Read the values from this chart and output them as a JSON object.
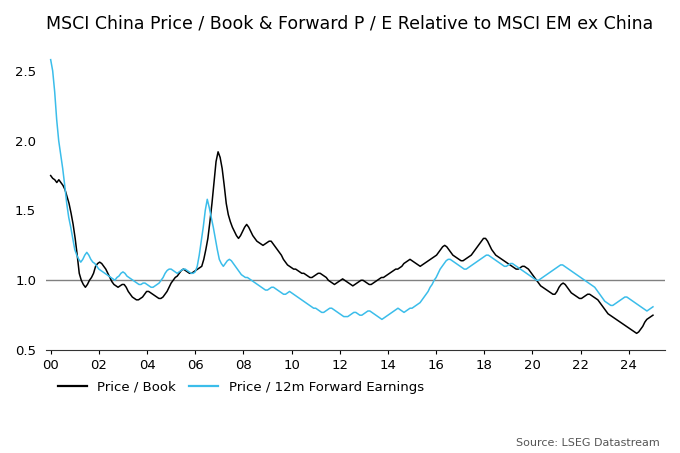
{
  "title": "MSCI China Price / Book & Forward P / E Relative to MSCI EM ex China",
  "source": "Source: LSEG Datastream",
  "ylim": [
    0.5,
    2.7
  ],
  "yticks": [
    0.5,
    1.0,
    1.5,
    2.0,
    2.5
  ],
  "xticks": [
    0,
    2,
    4,
    6,
    8,
    10,
    12,
    14,
    16,
    18,
    20,
    22,
    24
  ],
  "xticklabels": [
    "00",
    "02",
    "04",
    "06",
    "08",
    "10",
    "12",
    "14",
    "16",
    "18",
    "20",
    "22",
    "24"
  ],
  "xlim": [
    -0.2,
    25.5
  ],
  "hline_y": 1.0,
  "hline_color": "#808080",
  "legend_labels": [
    "Price / Book",
    "Price / 12m Forward Earnings"
  ],
  "pb_color": "#000000",
  "pe_color": "#3bbdea",
  "pb_linewidth": 1.1,
  "pe_linewidth": 1.1,
  "title_fontsize": 12.5,
  "tick_fontsize": 9.5,
  "legend_fontsize": 9.5,
  "source_fontsize": 8,
  "background_color": "#ffffff",
  "pb_y": [
    1.75,
    1.73,
    1.72,
    1.7,
    1.72,
    1.7,
    1.68,
    1.65,
    1.6,
    1.55,
    1.48,
    1.4,
    1.3,
    1.18,
    1.05,
    1.0,
    0.97,
    0.95,
    0.97,
    1.0,
    1.02,
    1.05,
    1.1,
    1.12,
    1.13,
    1.12,
    1.1,
    1.08,
    1.05,
    1.02,
    0.99,
    0.97,
    0.96,
    0.95,
    0.96,
    0.97,
    0.97,
    0.95,
    0.92,
    0.9,
    0.88,
    0.87,
    0.86,
    0.86,
    0.87,
    0.88,
    0.9,
    0.92,
    0.92,
    0.91,
    0.9,
    0.89,
    0.88,
    0.87,
    0.87,
    0.88,
    0.9,
    0.92,
    0.95,
    0.98,
    1.0,
    1.02,
    1.03,
    1.05,
    1.07,
    1.08,
    1.07,
    1.06,
    1.05,
    1.05,
    1.06,
    1.07,
    1.08,
    1.09,
    1.1,
    1.15,
    1.22,
    1.3,
    1.42,
    1.55,
    1.7,
    1.85,
    1.92,
    1.88,
    1.8,
    1.68,
    1.55,
    1.47,
    1.42,
    1.38,
    1.35,
    1.32,
    1.3,
    1.32,
    1.35,
    1.38,
    1.4,
    1.38,
    1.35,
    1.32,
    1.3,
    1.28,
    1.27,
    1.26,
    1.25,
    1.26,
    1.27,
    1.28,
    1.28,
    1.26,
    1.24,
    1.22,
    1.2,
    1.18,
    1.15,
    1.13,
    1.11,
    1.1,
    1.09,
    1.08,
    1.08,
    1.07,
    1.06,
    1.05,
    1.05,
    1.04,
    1.03,
    1.02,
    1.02,
    1.03,
    1.04,
    1.05,
    1.05,
    1.04,
    1.03,
    1.02,
    1.0,
    0.99,
    0.98,
    0.97,
    0.98,
    0.99,
    1.0,
    1.01,
    1.0,
    0.99,
    0.98,
    0.97,
    0.96,
    0.97,
    0.98,
    0.99,
    1.0,
    1.0,
    0.99,
    0.98,
    0.97,
    0.97,
    0.98,
    0.99,
    1.0,
    1.01,
    1.02,
    1.02,
    1.03,
    1.04,
    1.05,
    1.06,
    1.07,
    1.08,
    1.08,
    1.09,
    1.1,
    1.12,
    1.13,
    1.14,
    1.15,
    1.14,
    1.13,
    1.12,
    1.11,
    1.1,
    1.11,
    1.12,
    1.13,
    1.14,
    1.15,
    1.16,
    1.17,
    1.18,
    1.2,
    1.22,
    1.24,
    1.25,
    1.24,
    1.22,
    1.2,
    1.18,
    1.17,
    1.16,
    1.15,
    1.14,
    1.14,
    1.15,
    1.16,
    1.17,
    1.18,
    1.2,
    1.22,
    1.24,
    1.26,
    1.28,
    1.3,
    1.3,
    1.28,
    1.25,
    1.22,
    1.2,
    1.18,
    1.17,
    1.16,
    1.15,
    1.14,
    1.13,
    1.12,
    1.11,
    1.1,
    1.09,
    1.08,
    1.08,
    1.09,
    1.1,
    1.1,
    1.09,
    1.08,
    1.06,
    1.04,
    1.02,
    1.0,
    0.98,
    0.96,
    0.95,
    0.94,
    0.93,
    0.92,
    0.91,
    0.9,
    0.9,
    0.92,
    0.95,
    0.97,
    0.98,
    0.97,
    0.95,
    0.93,
    0.91,
    0.9,
    0.89,
    0.88,
    0.87,
    0.87,
    0.88,
    0.89,
    0.9,
    0.9,
    0.89,
    0.88,
    0.87,
    0.86,
    0.84,
    0.82,
    0.8,
    0.78,
    0.76,
    0.75,
    0.74,
    0.73,
    0.72,
    0.71,
    0.7,
    0.69,
    0.68,
    0.67,
    0.66,
    0.65,
    0.64,
    0.63,
    0.62,
    0.63,
    0.65,
    0.67,
    0.7,
    0.72,
    0.73,
    0.74,
    0.75
  ],
  "pe_y": [
    2.58,
    2.5,
    2.35,
    2.15,
    2.0,
    1.9,
    1.8,
    1.68,
    1.55,
    1.45,
    1.38,
    1.3,
    1.22,
    1.18,
    1.15,
    1.13,
    1.15,
    1.18,
    1.2,
    1.18,
    1.15,
    1.13,
    1.12,
    1.1,
    1.08,
    1.07,
    1.06,
    1.05,
    1.04,
    1.03,
    1.02,
    1.01,
    1.0,
    1.02,
    1.03,
    1.05,
    1.06,
    1.05,
    1.03,
    1.02,
    1.01,
    1.0,
    0.99,
    0.98,
    0.97,
    0.97,
    0.98,
    0.98,
    0.97,
    0.96,
    0.95,
    0.95,
    0.96,
    0.97,
    0.98,
    1.0,
    1.02,
    1.05,
    1.07,
    1.08,
    1.08,
    1.07,
    1.06,
    1.05,
    1.06,
    1.07,
    1.08,
    1.08,
    1.07,
    1.06,
    1.05,
    1.05,
    1.06,
    1.1,
    1.18,
    1.28,
    1.38,
    1.5,
    1.58,
    1.52,
    1.45,
    1.38,
    1.3,
    1.22,
    1.15,
    1.12,
    1.1,
    1.12,
    1.14,
    1.15,
    1.14,
    1.12,
    1.1,
    1.08,
    1.06,
    1.04,
    1.03,
    1.02,
    1.02,
    1.01,
    1.0,
    0.99,
    0.98,
    0.97,
    0.96,
    0.95,
    0.94,
    0.93,
    0.93,
    0.94,
    0.95,
    0.95,
    0.94,
    0.93,
    0.92,
    0.91,
    0.9,
    0.9,
    0.91,
    0.92,
    0.91,
    0.9,
    0.89,
    0.88,
    0.87,
    0.86,
    0.85,
    0.84,
    0.83,
    0.82,
    0.81,
    0.8,
    0.8,
    0.79,
    0.78,
    0.77,
    0.77,
    0.78,
    0.79,
    0.8,
    0.8,
    0.79,
    0.78,
    0.77,
    0.76,
    0.75,
    0.74,
    0.74,
    0.74,
    0.75,
    0.76,
    0.77,
    0.77,
    0.76,
    0.75,
    0.75,
    0.76,
    0.77,
    0.78,
    0.78,
    0.77,
    0.76,
    0.75,
    0.74,
    0.73,
    0.72,
    0.73,
    0.74,
    0.75,
    0.76,
    0.77,
    0.78,
    0.79,
    0.8,
    0.79,
    0.78,
    0.77,
    0.78,
    0.79,
    0.8,
    0.8,
    0.81,
    0.82,
    0.83,
    0.84,
    0.86,
    0.88,
    0.9,
    0.92,
    0.95,
    0.97,
    1.0,
    1.02,
    1.05,
    1.08,
    1.1,
    1.12,
    1.14,
    1.15,
    1.15,
    1.14,
    1.13,
    1.12,
    1.11,
    1.1,
    1.09,
    1.08,
    1.08,
    1.09,
    1.1,
    1.11,
    1.12,
    1.13,
    1.14,
    1.15,
    1.16,
    1.17,
    1.18,
    1.18,
    1.17,
    1.16,
    1.15,
    1.14,
    1.13,
    1.12,
    1.11,
    1.1,
    1.1,
    1.11,
    1.12,
    1.12,
    1.11,
    1.1,
    1.09,
    1.08,
    1.07,
    1.06,
    1.05,
    1.04,
    1.03,
    1.02,
    1.01,
    1.0,
    1.0,
    1.01,
    1.02,
    1.03,
    1.04,
    1.05,
    1.06,
    1.07,
    1.08,
    1.09,
    1.1,
    1.11,
    1.11,
    1.1,
    1.09,
    1.08,
    1.07,
    1.06,
    1.05,
    1.04,
    1.03,
    1.02,
    1.01,
    1.0,
    0.99,
    0.98,
    0.97,
    0.96,
    0.95,
    0.93,
    0.91,
    0.89,
    0.87,
    0.85,
    0.84,
    0.83,
    0.82,
    0.82,
    0.83,
    0.84,
    0.85,
    0.86,
    0.87,
    0.88,
    0.88,
    0.87,
    0.86,
    0.85,
    0.84,
    0.83,
    0.82,
    0.81,
    0.8,
    0.79,
    0.78,
    0.79,
    0.8,
    0.81
  ]
}
